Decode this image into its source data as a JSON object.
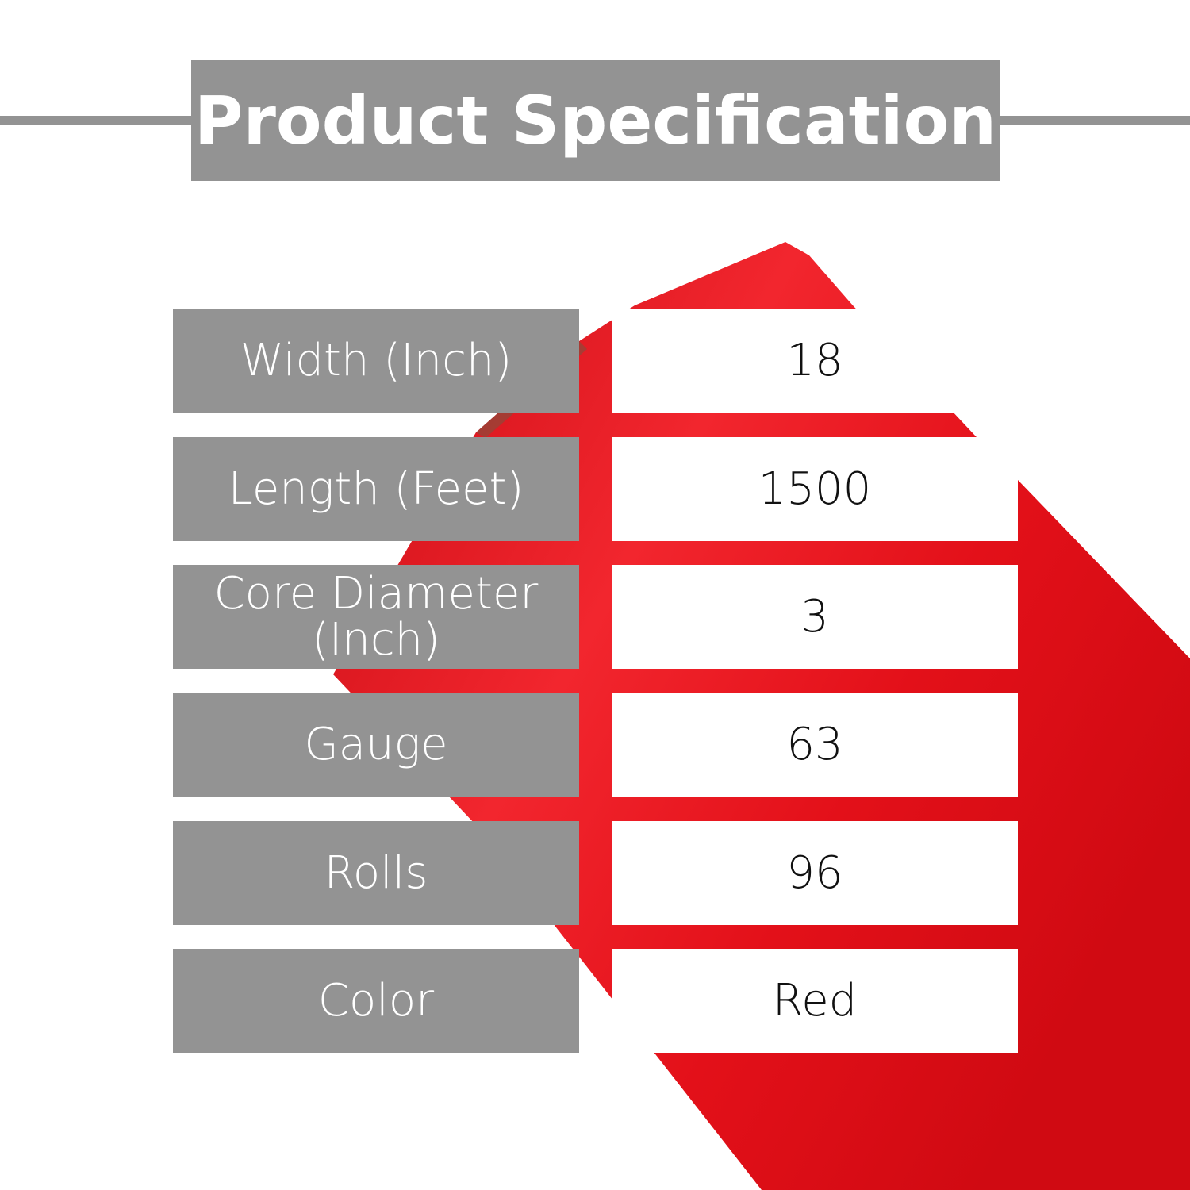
{
  "title": "Product Specification",
  "colors": {
    "panel_gray": "#939393",
    "roll_red": "#e3131b"
  },
  "specs": [
    {
      "label": "Width (Inch)",
      "value": "18"
    },
    {
      "label": "Length (Feet)",
      "value": "1500"
    },
    {
      "label": "Core Diameter (Inch)",
      "value": "3"
    },
    {
      "label": "Gauge",
      "value": "63"
    },
    {
      "label": "Rolls",
      "value": "96"
    },
    {
      "label": "Color",
      "value": "Red"
    }
  ]
}
